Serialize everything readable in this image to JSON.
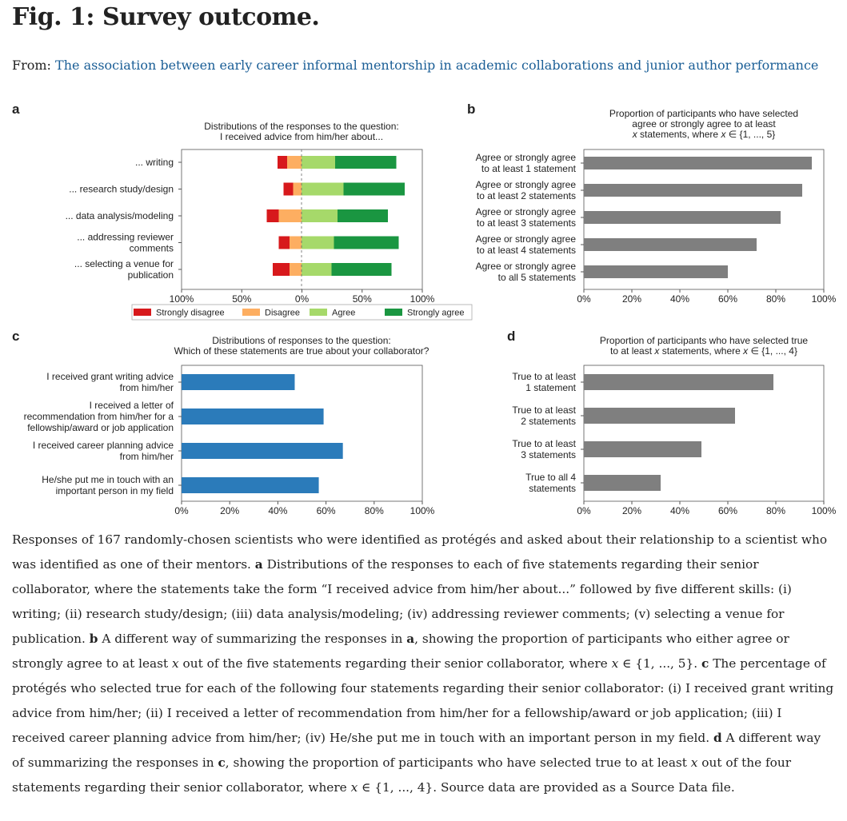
{
  "header": {
    "fig_title": "Fig. 1: Survey outcome.",
    "from_label": "From: ",
    "article_title": "The association between early career informal mentorship in academic collaborations and junior author performance"
  },
  "colors": {
    "strongly_disagree": "#d7191c",
    "disagree": "#fdae61",
    "agree": "#a6d96a",
    "strongly_agree": "#1a9641",
    "blue_bar": "#2b7bba",
    "gray_bar": "#7f7f7f",
    "link": "#1a5e96"
  },
  "chart_data": [
    {
      "panel": "a",
      "type": "bar",
      "orientation": "horizontal-diverging",
      "title_lines": [
        "Distributions of the responses to the question:",
        "I received advice from him/her about..."
      ],
      "categories": [
        [
          "... writing"
        ],
        [
          "... research study/design"
        ],
        [
          "... data analysis/modeling"
        ],
        [
          "... addressing reviewer",
          "comments"
        ],
        [
          "... selecting a venue for",
          "publication"
        ]
      ],
      "series": [
        {
          "name": "Strongly disagree",
          "values": [
            8,
            8,
            10,
            9,
            14
          ]
        },
        {
          "name": "Disagree",
          "values": [
            12,
            7,
            19,
            10,
            10
          ]
        },
        {
          "name": "Agree",
          "values": [
            28,
            35,
            30,
            27,
            25
          ]
        },
        {
          "name": "Strongly agree",
          "values": [
            51,
            51,
            42,
            54,
            50
          ]
        }
      ],
      "xticks": [
        "100%",
        "50%",
        "0%",
        "50%",
        "100%"
      ],
      "xlim": [
        -100,
        100
      ],
      "legend_position": "bottom"
    },
    {
      "panel": "b",
      "type": "bar",
      "orientation": "horizontal",
      "title_lines": [
        "Proportion of participants who have selected",
        "agree or strongly agree to at least",
        "x statements, where x ∈ {1, ..., 5}"
      ],
      "categories": [
        [
          "Agree or strongly agree",
          "to at least 1 statement"
        ],
        [
          "Agree or strongly agree",
          "to at least 2 statements"
        ],
        [
          "Agree or strongly agree",
          "to at least 3 statements"
        ],
        [
          "Agree or strongly agree",
          "to at least 4 statements"
        ],
        [
          "Agree or strongly agree",
          "to all 5 statements"
        ]
      ],
      "values": [
        95,
        91,
        82,
        72,
        60
      ],
      "xticks": [
        "0%",
        "20%",
        "40%",
        "60%",
        "80%",
        "100%"
      ],
      "xlim": [
        0,
        100
      ]
    },
    {
      "panel": "c",
      "type": "bar",
      "orientation": "horizontal",
      "title_lines": [
        "Distributions of responses to the question:",
        "Which of these statements are true about your collaborator?"
      ],
      "categories": [
        [
          "I received grant writing advice",
          "from him/her"
        ],
        [
          "I received a letter of",
          "recommendation from him/her for a",
          "fellowship/award or job application"
        ],
        [
          "I received career planning advice",
          "from him/her"
        ],
        [
          "He/she put me in touch with an",
          "important person in my field"
        ]
      ],
      "values": [
        47,
        59,
        67,
        57
      ],
      "xticks": [
        "0%",
        "20%",
        "40%",
        "60%",
        "80%",
        "100%"
      ],
      "xlim": [
        0,
        100
      ]
    },
    {
      "panel": "d",
      "type": "bar",
      "orientation": "horizontal",
      "title_lines": [
        "Proportion of participants who have selected true",
        "to at least x statements, where x ∈ {1, ..., 4}"
      ],
      "categories": [
        [
          "True to at least",
          "1 statement"
        ],
        [
          "True to at least",
          "2 statements"
        ],
        [
          "True to at least",
          "3 statements"
        ],
        [
          "True to all 4",
          "statements"
        ]
      ],
      "values": [
        79,
        63,
        49,
        32
      ],
      "xticks": [
        "0%",
        "20%",
        "40%",
        "60%",
        "80%",
        "100%"
      ],
      "xlim": [
        0,
        100
      ]
    }
  ],
  "caption": {
    "intro": "Responses of 167 randomly-chosen scientists who were identified as protégés and asked about their relationship to a scientist who was identified as one of their mentors.",
    "label_a": "a",
    "text_a": " Distributions of the responses to each of five statements regarding their senior collaborator, where the statements take the form “I received advice from him/her about...” followed by five different skills: (i) writing; (ii) research study/design; (iii) data analysis/modeling; (iv) addressing reviewer comments; (v) selecting a venue for publication.",
    "label_b": "b",
    "text_b1": " A different way of summarizing the responses in ",
    "ref_a": "a",
    "text_b2": ", showing the proportion of participants who either agree or strongly agree to at least ",
    "var_x1": "x",
    "text_b3": " out of the five statements regarding their senior collaborator, where ",
    "var_x2": "x",
    "text_b4": " ∈ {1, ..., 5}.",
    "label_c": "c",
    "text_c": " The percentage of protégés who selected true for each of the following four statements regarding their senior collaborator: (i) I received grant writing advice from him/her; (ii) I received a letter of recommendation from him/her for a fellowship/award or job application; (iii) I received career planning advice from him/her; (iv) He/she put me in touch with an important person in my field.",
    "label_d": "d",
    "text_d1": " A different way of summarizing the responses in ",
    "ref_c": "c",
    "text_d2": ", showing the proportion of participants who have selected true to at least ",
    "var_x3": "x",
    "text_d3": " out of the four statements regarding their senior collaborator, where ",
    "var_x4": "x",
    "text_d4": " ∈ {1, ..., 4}. Source data are provided as a Source Data file."
  }
}
